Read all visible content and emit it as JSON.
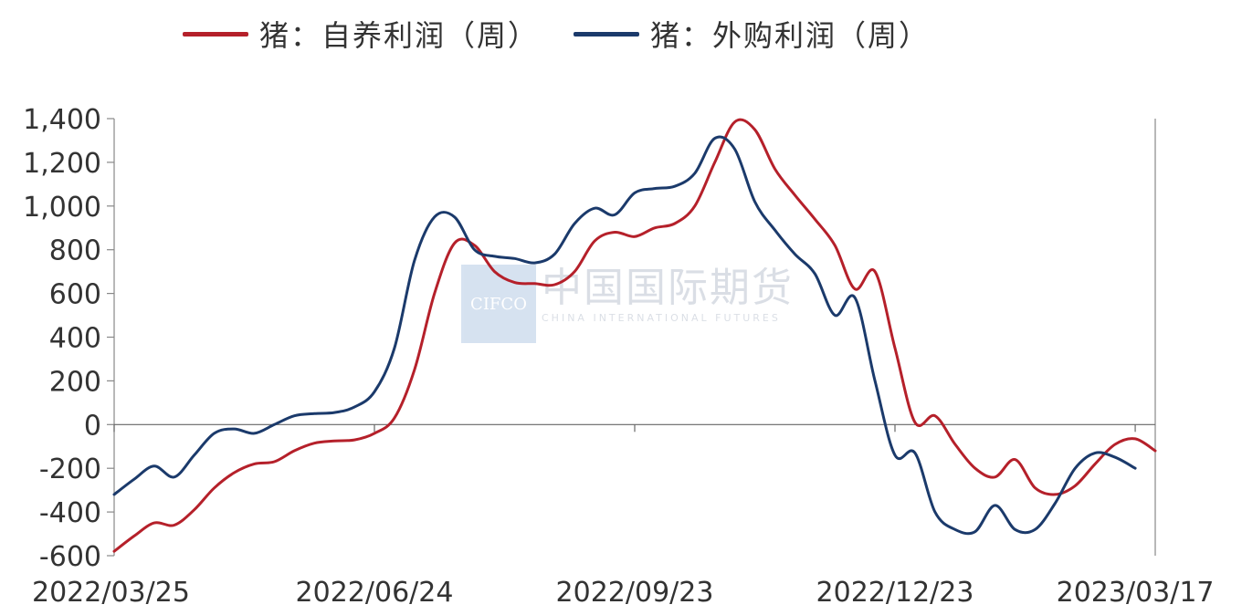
{
  "chart_data": {
    "type": "line",
    "title": "",
    "xlabel": "",
    "ylabel": "",
    "ylim": [
      -600,
      1400
    ],
    "yticks": [
      -600,
      -400,
      -200,
      0,
      200,
      400,
      600,
      800,
      1000,
      1200,
      1400
    ],
    "ytick_labels": [
      "-600",
      "-400",
      "-200",
      "0",
      "200",
      "400",
      "600",
      "800",
      "1,000",
      "1,200",
      "1,400"
    ],
    "xlim": [
      "2022-03-25",
      "2023-03-24"
    ],
    "xtick_labels": [
      "2022/03/25",
      "2022/06/24",
      "2022/09/23",
      "2022/12/23",
      "2023/03/17"
    ],
    "xtick_dates": [
      "2022-03-25",
      "2022-06-24",
      "2022-09-23",
      "2022-12-23",
      "2023-03-17"
    ],
    "grid": false,
    "legend_position": "top",
    "series": [
      {
        "name": "猪：自养利润（周）",
        "color": "#b5202a",
        "points": [
          [
            "2022-03-25",
            -580
          ],
          [
            "2022-04-01",
            -510
          ],
          [
            "2022-04-08",
            -450
          ],
          [
            "2022-04-15",
            -460
          ],
          [
            "2022-04-22",
            -390
          ],
          [
            "2022-04-29",
            -290
          ],
          [
            "2022-05-06",
            -220
          ],
          [
            "2022-05-13",
            -180
          ],
          [
            "2022-05-20",
            -170
          ],
          [
            "2022-05-27",
            -120
          ],
          [
            "2022-06-03",
            -85
          ],
          [
            "2022-06-10",
            -75
          ],
          [
            "2022-06-17",
            -70
          ],
          [
            "2022-06-24",
            -40
          ],
          [
            "2022-07-01",
            30
          ],
          [
            "2022-07-08",
            250
          ],
          [
            "2022-07-15",
            600
          ],
          [
            "2022-07-22",
            830
          ],
          [
            "2022-07-29",
            820
          ],
          [
            "2022-08-05",
            700
          ],
          [
            "2022-08-12",
            650
          ],
          [
            "2022-08-19",
            645
          ],
          [
            "2022-08-26",
            640
          ],
          [
            "2022-09-02",
            700
          ],
          [
            "2022-09-09",
            840
          ],
          [
            "2022-09-16",
            880
          ],
          [
            "2022-09-23",
            860
          ],
          [
            "2022-09-30",
            900
          ],
          [
            "2022-10-07",
            920
          ],
          [
            "2022-10-14",
            1000
          ],
          [
            "2022-10-21",
            1200
          ],
          [
            "2022-10-28",
            1385
          ],
          [
            "2022-11-04",
            1350
          ],
          [
            "2022-11-11",
            1170
          ],
          [
            "2022-11-18",
            1050
          ],
          [
            "2022-11-25",
            940
          ],
          [
            "2022-12-02",
            820
          ],
          [
            "2022-12-09",
            620
          ],
          [
            "2022-12-16",
            700
          ],
          [
            "2022-12-23",
            350
          ],
          [
            "2022-12-30",
            10
          ],
          [
            "2023-01-06",
            40
          ],
          [
            "2023-01-13",
            -90
          ],
          [
            "2023-01-20",
            -200
          ],
          [
            "2023-01-27",
            -240
          ],
          [
            "2023-02-03",
            -160
          ],
          [
            "2023-02-10",
            -290
          ],
          [
            "2023-02-17",
            -320
          ],
          [
            "2023-02-24",
            -280
          ],
          [
            "2023-03-03",
            -180
          ],
          [
            "2023-03-10",
            -90
          ],
          [
            "2023-03-17",
            -65
          ],
          [
            "2023-03-24",
            -120
          ]
        ]
      },
      {
        "name": "猪：外购利润（周）",
        "color": "#1b3a6b",
        "points": [
          [
            "2022-03-25",
            -320
          ],
          [
            "2022-04-01",
            -250
          ],
          [
            "2022-04-08",
            -190
          ],
          [
            "2022-04-15",
            -240
          ],
          [
            "2022-04-22",
            -140
          ],
          [
            "2022-04-29",
            -40
          ],
          [
            "2022-05-06",
            -20
          ],
          [
            "2022-05-13",
            -40
          ],
          [
            "2022-05-20",
            0
          ],
          [
            "2022-05-27",
            40
          ],
          [
            "2022-06-03",
            50
          ],
          [
            "2022-06-10",
            55
          ],
          [
            "2022-06-17",
            80
          ],
          [
            "2022-06-24",
            150
          ],
          [
            "2022-07-01",
            350
          ],
          [
            "2022-07-08",
            750
          ],
          [
            "2022-07-15",
            950
          ],
          [
            "2022-07-22",
            950
          ],
          [
            "2022-07-29",
            800
          ],
          [
            "2022-08-05",
            770
          ],
          [
            "2022-08-12",
            760
          ],
          [
            "2022-08-19",
            740
          ],
          [
            "2022-08-26",
            780
          ],
          [
            "2022-09-02",
            920
          ],
          [
            "2022-09-09",
            990
          ],
          [
            "2022-09-16",
            960
          ],
          [
            "2022-09-23",
            1060
          ],
          [
            "2022-09-30",
            1080
          ],
          [
            "2022-10-07",
            1090
          ],
          [
            "2022-10-14",
            1150
          ],
          [
            "2022-10-21",
            1310
          ],
          [
            "2022-10-28",
            1260
          ],
          [
            "2022-11-04",
            1020
          ],
          [
            "2022-11-11",
            890
          ],
          [
            "2022-11-18",
            780
          ],
          [
            "2022-11-25",
            690
          ],
          [
            "2022-12-02",
            500
          ],
          [
            "2022-12-09",
            580
          ],
          [
            "2022-12-16",
            200
          ],
          [
            "2022-12-23",
            -140
          ],
          [
            "2022-12-30",
            -130
          ],
          [
            "2023-01-06",
            -400
          ],
          [
            "2023-01-13",
            -480
          ],
          [
            "2023-01-20",
            -490
          ],
          [
            "2023-01-27",
            -370
          ],
          [
            "2023-02-03",
            -480
          ],
          [
            "2023-02-10",
            -480
          ],
          [
            "2023-02-17",
            -360
          ],
          [
            "2023-02-24",
            -200
          ],
          [
            "2023-03-03",
            -130
          ],
          [
            "2023-03-10",
            -150
          ],
          [
            "2023-03-17",
            -200
          ]
        ]
      }
    ],
    "watermark": {
      "logo_text": "CIFCO",
      "text": "中国国际期货",
      "subtext": "CHINA INTERNATIONAL FUTURES"
    }
  }
}
